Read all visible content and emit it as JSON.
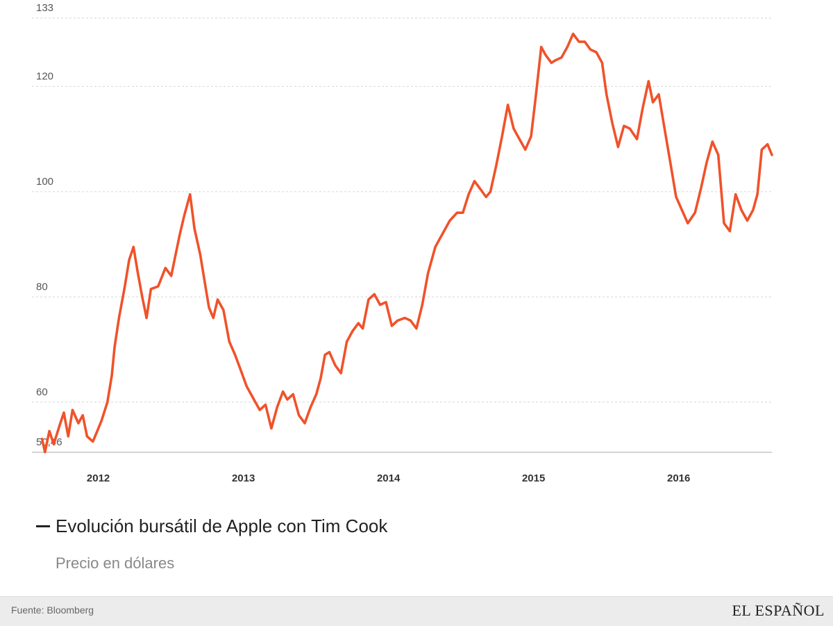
{
  "chart_data": {
    "type": "line",
    "title": "Evolución bursátil de Apple con Tim Cook",
    "subtitle": "Precio en dólares",
    "series": [
      {
        "name": "Evolución bursátil de Apple con Tim Cook",
        "color": "#f0522a",
        "values": [
          [
            2011.67,
            53.0
          ],
          [
            2011.69,
            50.5
          ],
          [
            2011.72,
            54.5
          ],
          [
            2011.75,
            52.0
          ],
          [
            2011.79,
            55.5
          ],
          [
            2011.82,
            58.0
          ],
          [
            2011.85,
            53.5
          ],
          [
            2011.88,
            58.5
          ],
          [
            2011.92,
            56.0
          ],
          [
            2011.95,
            57.5
          ],
          [
            2011.98,
            53.5
          ],
          [
            2012.02,
            52.5
          ],
          [
            2012.05,
            54.5
          ],
          [
            2012.08,
            56.5
          ],
          [
            2012.12,
            60.0
          ],
          [
            2012.15,
            65.0
          ],
          [
            2012.17,
            70.5
          ],
          [
            2012.2,
            76.0
          ],
          [
            2012.24,
            82.0
          ],
          [
            2012.27,
            87.0
          ],
          [
            2012.3,
            89.5
          ],
          [
            2012.33,
            84.5
          ],
          [
            2012.36,
            80.0
          ],
          [
            2012.39,
            76.0
          ],
          [
            2012.42,
            81.5
          ],
          [
            2012.47,
            82.0
          ],
          [
            2012.52,
            85.5
          ],
          [
            2012.56,
            84.0
          ],
          [
            2012.59,
            88.0
          ],
          [
            2012.62,
            92.0
          ],
          [
            2012.65,
            95.5
          ],
          [
            2012.69,
            99.5
          ],
          [
            2012.72,
            93.0
          ],
          [
            2012.76,
            88.0
          ],
          [
            2012.79,
            83.0
          ],
          [
            2012.82,
            78.0
          ],
          [
            2012.85,
            76.0
          ],
          [
            2012.88,
            79.5
          ],
          [
            2012.92,
            77.5
          ],
          [
            2012.96,
            71.5
          ],
          [
            2013.0,
            69.0
          ],
          [
            2013.04,
            66.0
          ],
          [
            2013.08,
            63.0
          ],
          [
            2013.12,
            61.0
          ],
          [
            2013.17,
            58.5
          ],
          [
            2013.21,
            59.5
          ],
          [
            2013.25,
            55.0
          ],
          [
            2013.29,
            59.0
          ],
          [
            2013.33,
            62.0
          ],
          [
            2013.36,
            60.5
          ],
          [
            2013.4,
            61.5
          ],
          [
            2013.44,
            57.5
          ],
          [
            2013.48,
            56.0
          ],
          [
            2013.52,
            59.0
          ],
          [
            2013.56,
            61.5
          ],
          [
            2013.59,
            64.5
          ],
          [
            2013.62,
            69.0
          ],
          [
            2013.65,
            69.5
          ],
          [
            2013.69,
            67.0
          ],
          [
            2013.73,
            65.5
          ],
          [
            2013.77,
            71.5
          ],
          [
            2013.81,
            73.5
          ],
          [
            2013.85,
            75.0
          ],
          [
            2013.88,
            74.0
          ],
          [
            2013.92,
            79.5
          ],
          [
            2013.96,
            80.5
          ],
          [
            2014.0,
            78.5
          ],
          [
            2014.04,
            79.0
          ],
          [
            2014.08,
            74.5
          ],
          [
            2014.12,
            75.5
          ],
          [
            2014.17,
            76.0
          ],
          [
            2014.21,
            75.5
          ],
          [
            2014.25,
            74.0
          ],
          [
            2014.29,
            78.5
          ],
          [
            2014.33,
            84.5
          ],
          [
            2014.38,
            89.5
          ],
          [
            2014.43,
            92.0
          ],
          [
            2014.48,
            94.5
          ],
          [
            2014.53,
            96.0
          ],
          [
            2014.57,
            96.0
          ],
          [
            2014.61,
            99.5
          ],
          [
            2014.65,
            102.0
          ],
          [
            2014.69,
            100.5
          ],
          [
            2014.73,
            99.0
          ],
          [
            2014.76,
            100.0
          ],
          [
            2014.8,
            105.0
          ],
          [
            2014.84,
            110.5
          ],
          [
            2014.88,
            116.5
          ],
          [
            2014.92,
            112.0
          ],
          [
            2014.96,
            110.0
          ],
          [
            2015.0,
            108.0
          ],
          [
            2015.04,
            110.5
          ],
          [
            2015.07,
            117.5
          ],
          [
            2015.11,
            127.5
          ],
          [
            2015.14,
            126.0
          ],
          [
            2015.18,
            124.5
          ],
          [
            2015.21,
            125.0
          ],
          [
            2015.25,
            125.5
          ],
          [
            2015.29,
            127.5
          ],
          [
            2015.33,
            130.0
          ],
          [
            2015.37,
            128.5
          ],
          [
            2015.41,
            128.5
          ],
          [
            2015.45,
            127.0
          ],
          [
            2015.49,
            126.5
          ],
          [
            2015.53,
            124.5
          ],
          [
            2015.56,
            118.5
          ],
          [
            2015.6,
            113.0
          ],
          [
            2015.64,
            108.5
          ],
          [
            2015.68,
            112.5
          ],
          [
            2015.72,
            112.0
          ],
          [
            2015.77,
            110.0
          ],
          [
            2015.81,
            116.0
          ],
          [
            2015.85,
            121.0
          ],
          [
            2015.88,
            117.0
          ],
          [
            2015.92,
            118.5
          ],
          [
            2015.96,
            112.0
          ],
          [
            2016.0,
            105.5
          ],
          [
            2016.04,
            99.0
          ],
          [
            2016.08,
            96.5
          ],
          [
            2016.12,
            94.0
          ],
          [
            2016.17,
            96.0
          ],
          [
            2016.21,
            100.5
          ],
          [
            2016.25,
            105.5
          ],
          [
            2016.29,
            109.5
          ],
          [
            2016.33,
            107.0
          ],
          [
            2016.37,
            94.0
          ],
          [
            2016.41,
            92.5
          ],
          [
            2016.45,
            99.5
          ],
          [
            2016.49,
            96.5
          ],
          [
            2016.53,
            94.5
          ],
          [
            2016.57,
            96.5
          ],
          [
            2016.6,
            99.5
          ],
          [
            2016.63,
            108.0
          ],
          [
            2016.67,
            109.0
          ],
          [
            2016.7,
            107.0
          ]
        ]
      }
    ],
    "y_ticks": [
      {
        "value": 133,
        "label": "133"
      },
      {
        "value": 120,
        "label": "120"
      },
      {
        "value": 100,
        "label": "100"
      },
      {
        "value": 80,
        "label": "80"
      },
      {
        "value": 60,
        "label": "60"
      },
      {
        "value": 50.46,
        "label": "50,46"
      }
    ],
    "x_ticks": [
      {
        "value": 2012.0,
        "label": "2012"
      },
      {
        "value": 2013.0,
        "label": "2013"
      },
      {
        "value": 2014.0,
        "label": "2014"
      },
      {
        "value": 2015.0,
        "label": "2015"
      },
      {
        "value": 2016.0,
        "label": "2016"
      }
    ],
    "ylim": [
      50.46,
      133
    ],
    "xlim": [
      2011.6,
      2016.7
    ],
    "grid": true,
    "legend_placement": "bottom-left"
  },
  "footer": {
    "source": "Fuente: Bloomberg",
    "brand": "EL ESPAÑOL"
  }
}
